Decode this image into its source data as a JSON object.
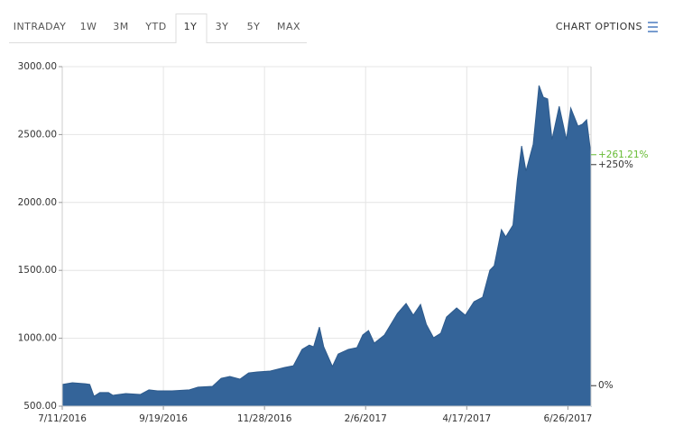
{
  "tabs": [
    "INTRADAY",
    "1W",
    "3M",
    "YTD",
    "1Y",
    "3Y",
    "5Y",
    "MAX"
  ],
  "selected_tab": 4,
  "chart_options": "CHART OPTIONS",
  "chart_data": {
    "type": "area",
    "color": "#346499",
    "grid": true,
    "x": [
      "2016-07-11",
      "2016-07-18",
      "2016-07-27",
      "2016-07-30",
      "2016-08-02",
      "2016-08-06",
      "2016-08-12",
      "2016-08-15",
      "2016-08-24",
      "2016-09-03",
      "2016-09-09",
      "2016-09-15",
      "2016-09-25",
      "2016-10-07",
      "2016-10-13",
      "2016-10-23",
      "2016-10-29",
      "2016-11-04",
      "2016-11-11",
      "2016-11-17",
      "2016-11-23",
      "2016-12-02",
      "2016-12-12",
      "2016-12-18",
      "2016-12-24",
      "2016-12-29",
      "2017-01-01",
      "2017-01-05",
      "2017-01-08",
      "2017-01-14",
      "2017-01-18",
      "2017-01-25",
      "2017-01-31",
      "2017-02-04",
      "2017-02-08",
      "2017-02-12",
      "2017-02-19",
      "2017-02-28",
      "2017-03-06",
      "2017-03-11",
      "2017-03-16",
      "2017-03-20",
      "2017-03-25",
      "2017-03-30",
      "2017-04-03",
      "2017-04-10",
      "2017-04-16",
      "2017-04-22",
      "2017-04-28",
      "2017-05-03",
      "2017-05-06",
      "2017-05-11",
      "2017-05-14",
      "2017-05-19",
      "2017-05-22",
      "2017-05-25",
      "2017-05-28",
      "2017-06-02",
      "2017-06-06",
      "2017-06-09",
      "2017-06-12",
      "2017-06-15",
      "2017-06-20",
      "2017-06-25",
      "2017-06-28",
      "2017-07-03",
      "2017-07-06",
      "2017-07-09",
      "2017-07-12"
    ],
    "values": [
      660,
      672,
      665,
      660,
      573,
      600,
      600,
      580,
      593,
      586,
      620,
      613,
      613,
      620,
      640,
      646,
      705,
      719,
      699,
      745,
      752,
      759,
      785,
      798,
      918,
      950,
      937,
      1083,
      937,
      792,
      884,
      918,
      931,
      1024,
      1057,
      964,
      1024,
      1183,
      1256,
      1170,
      1249,
      1103,
      1004,
      1037,
      1156,
      1223,
      1170,
      1269,
      1302,
      1501,
      1534,
      1800,
      1747,
      1833,
      2164,
      2416,
      2231,
      2429,
      2861,
      2775,
      2762,
      2463,
      2708,
      2463,
      2695,
      2562,
      2576,
      2609,
      2351
    ],
    "xlim": [
      "2016-07-11",
      "2017-07-12"
    ],
    "xticks": [
      {
        "value": "2016-07-11",
        "label": "7/11/2016"
      },
      {
        "value": "2016-09-19",
        "label": "9/19/2016"
      },
      {
        "value": "2016-11-28",
        "label": "11/28/2016"
      },
      {
        "value": "2017-02-06",
        "label": "2/6/2017"
      },
      {
        "value": "2017-04-17",
        "label": "4/17/2017"
      },
      {
        "value": "2017-06-26",
        "label": "6/26/2017"
      }
    ],
    "ylim": [
      500,
      3000
    ],
    "yticks": [
      {
        "value": 500,
        "label": "500.00"
      },
      {
        "value": 1000,
        "label": "1000.00"
      },
      {
        "value": 1500,
        "label": "1500.00"
      },
      {
        "value": 2000,
        "label": "2000.00"
      },
      {
        "value": 2500,
        "label": "2500.00"
      },
      {
        "value": 3000,
        "label": "3000.00"
      }
    ],
    "y2lim": [
      -23.2,
      360.8
    ],
    "y2ticks": [
      {
        "value": 0,
        "label": "0%"
      },
      {
        "value": 250,
        "label": "+250%"
      }
    ],
    "annotation": {
      "text": "+261.21%",
      "value": 261.21,
      "axis": "y2",
      "color": "#66bb33"
    }
  }
}
